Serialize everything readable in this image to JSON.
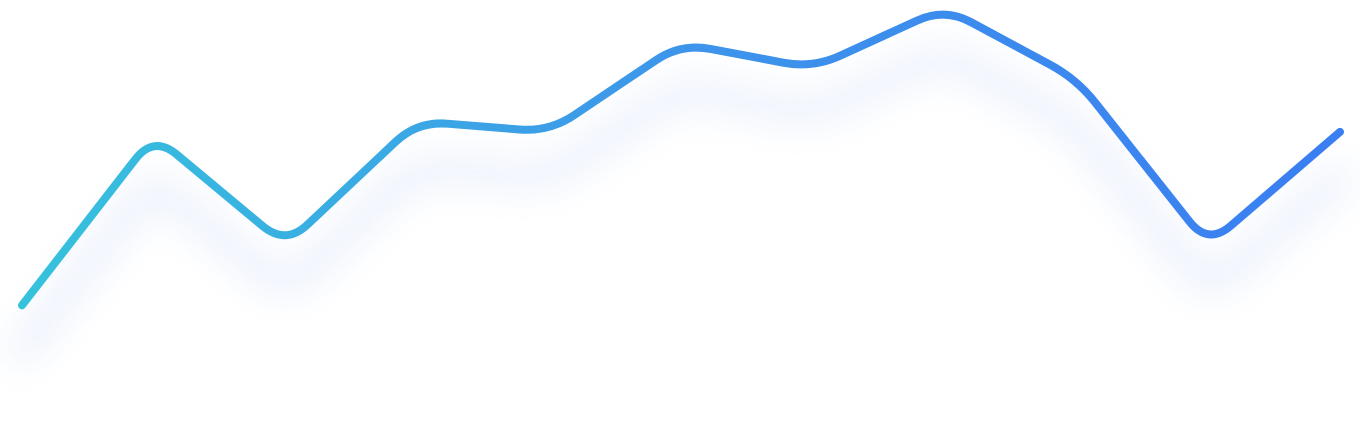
{
  "chart_data": {
    "type": "line",
    "title": "",
    "xlabel": "",
    "ylabel": "",
    "grid": false,
    "legend": "none",
    "x": [
      0,
      1,
      2,
      3,
      4,
      5,
      6,
      7,
      8,
      9,
      10
    ],
    "ylim": [
      0,
      100
    ],
    "series": [
      {
        "values": [
          16,
          64,
          33,
          68,
          65,
          90,
          83,
          100,
          80,
          33,
          65
        ]
      }
    ],
    "colors": {
      "gradient_start": "#36c2dc",
      "gradient_end": "#3a7ef2",
      "shadow": "#dfe8fb"
    }
  }
}
